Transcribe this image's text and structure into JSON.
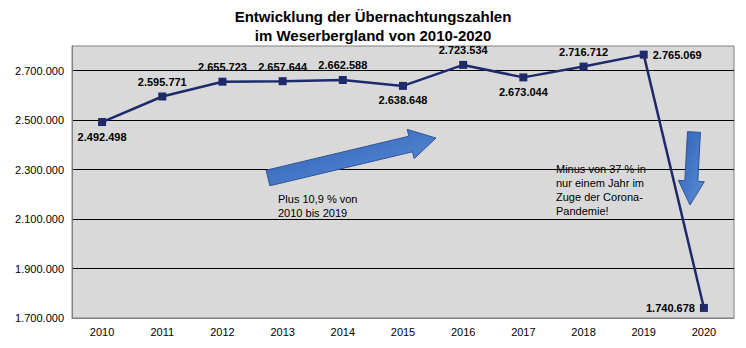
{
  "chart_data": {
    "type": "line",
    "title": "Entwicklung der Übernachtungszahlen\nim Weserbergland von 2010-2020",
    "categories": [
      "2010",
      "2011",
      "2012",
      "2013",
      "2014",
      "2015",
      "2016",
      "2017",
      "2018",
      "2019",
      "2020"
    ],
    "values": [
      2492498,
      2595771,
      2655723,
      2657644,
      2662588,
      2638648,
      2723534,
      2673044,
      2716712,
      2765069,
      1740678
    ],
    "value_labels": [
      "2.492.498",
      "2.595.771",
      "2.655.723",
      "2.657.644",
      "2.662.588",
      "2.638.648",
      "2.723.534",
      "2.673.044",
      "2.716.712",
      "2.765.069",
      "1.740.678"
    ],
    "color": "#1f2a6b",
    "marker": "square",
    "data_labels": true,
    "ylim": [
      1700000,
      2800000
    ],
    "yticks": [
      {
        "value": 1700000,
        "label": "1.700.000"
      },
      {
        "value": 1900000,
        "label": "1.900.000"
      },
      {
        "value": 2100000,
        "label": "2.100.000"
      },
      {
        "value": 2300000,
        "label": "2.300.000"
      },
      {
        "value": 2500000,
        "label": "2.500.000"
      },
      {
        "value": 2700000,
        "label": "2.700.000"
      }
    ],
    "grid": true,
    "annotations": [
      "Plus 10,9 % von\n2010 bis 2019",
      "Minus von 37 % in\nnur einem Jahr im\nZuge der Corona-\nPandemie!"
    ]
  }
}
